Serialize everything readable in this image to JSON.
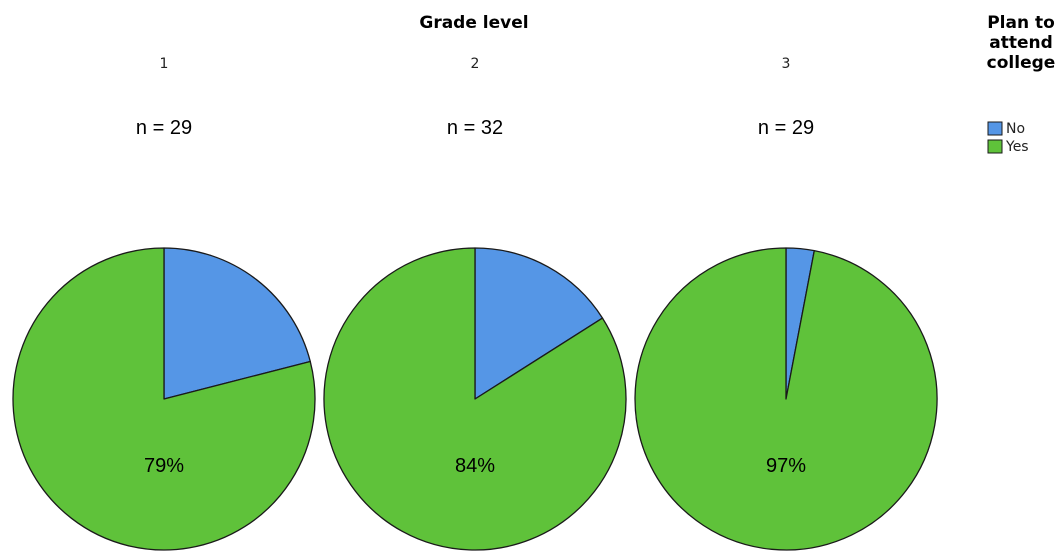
{
  "chart_data": {
    "type": "pie",
    "facet_title": "Grade level",
    "facets": [
      {
        "category": "1",
        "n_label": "n = 29",
        "slices": {
          "No": 21,
          "Yes": 79
        },
        "data_label": "79%"
      },
      {
        "category": "2",
        "n_label": "n = 32",
        "slices": {
          "No": 16,
          "Yes": 84
        },
        "data_label": "84%"
      },
      {
        "category": "3",
        "n_label": "n = 29",
        "slices": {
          "No": 3,
          "Yes": 97
        },
        "data_label": "97%"
      }
    ],
    "legend": {
      "title_lines": [
        "Plan to",
        "attend",
        "college"
      ],
      "placement": "top-right",
      "entries": [
        {
          "label": "No",
          "color": "#5596e6"
        },
        {
          "label": "Yes",
          "color": "#5fc23a"
        }
      ]
    }
  }
}
